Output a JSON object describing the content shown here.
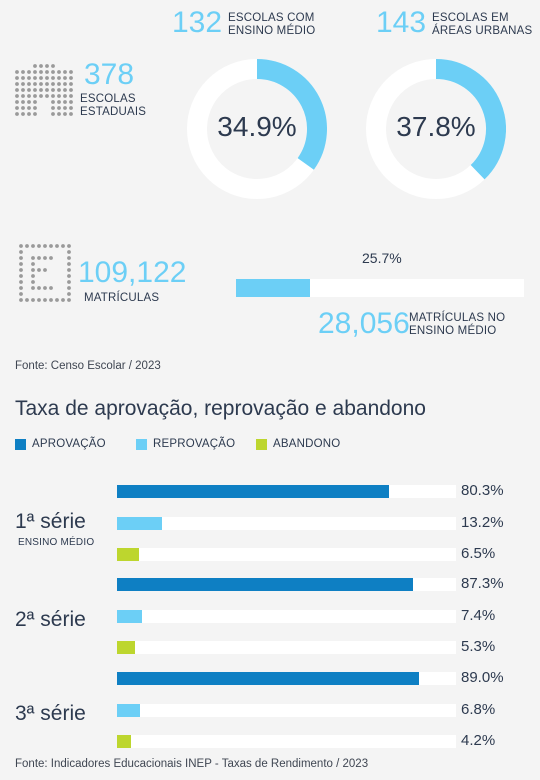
{
  "header": {
    "ensino_medio": {
      "number": "132",
      "label_line1": "ESCOLAS COM",
      "label_line2": "ENSINO MÉDIO",
      "percent_text": "34.9%",
      "percent": 34.9
    },
    "urbanas": {
      "number": "143",
      "label_line1": "ESCOLAS EM",
      "label_line2": "ÁREAS URBANAS",
      "percent_text": "37.8%",
      "percent": 37.8
    },
    "estaduais": {
      "number": "378",
      "label_line1": "ESCOLAS",
      "label_line2": "ESTADUAIS"
    },
    "matriculas": {
      "number": "109,122",
      "label": "MATRÍCULAS"
    },
    "matriculas_em": {
      "number": "28,056",
      "label_line1": "MATRÍCULAS NO",
      "label_line2": "ENSINO MÉDIO",
      "percent_text": "25.7%",
      "percent": 25.7
    },
    "source": "Fonte: Censo Escolar / 2023"
  },
  "colors": {
    "aprovacao": "#0e7fc3",
    "reprovacao": "#6ccff6",
    "abandono": "#bdd62e",
    "track": "#ffffff"
  },
  "chart_data": {
    "type": "bar",
    "title": "Taxa de aprovação, reprovação e abandono",
    "legend": [
      "APROVAÇÃO",
      "REPROVAÇÃO",
      "ABANDONO"
    ],
    "groups": [
      {
        "label": "1ª série",
        "sublabel": "ENSINO MÉDIO",
        "values": [
          80.3,
          13.2,
          6.5
        ],
        "labels": [
          "80.3%",
          "13.2%",
          "6.5%"
        ]
      },
      {
        "label": "2ª série",
        "sublabel": "",
        "values": [
          87.3,
          7.4,
          5.3
        ],
        "labels": [
          "87.3%",
          "7.4%",
          "5.3%"
        ]
      },
      {
        "label": "3ª série",
        "sublabel": "",
        "values": [
          89.0,
          6.8,
          4.2
        ],
        "labels": [
          "89.0%",
          "6.8%",
          "4.2%"
        ]
      }
    ],
    "xlim": [
      0,
      100
    ],
    "source": "Fonte: Indicadores Educacionais INEP - Taxas de Rendimento / 2023"
  }
}
